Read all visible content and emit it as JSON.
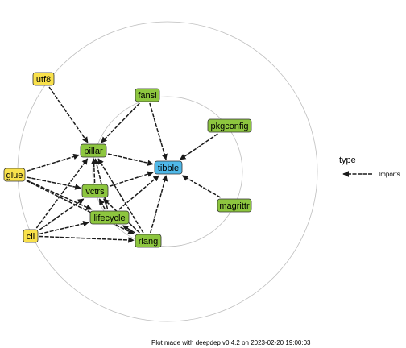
{
  "legend": {
    "title": "type",
    "items": [
      {
        "label": "Imports"
      }
    ]
  },
  "caption": "Plot made with deepdep v0.4.2 on 2023-02-20 19:00:03",
  "colors": {
    "level1": "#f9e14b",
    "level2": "#8dc63f",
    "root": "#4fb8e8",
    "edge": "#1a1a1a",
    "ring": "#bdbdbd"
  },
  "nodes": [
    {
      "id": "tibble",
      "label": "tibble",
      "level": "root"
    },
    {
      "id": "fansi",
      "label": "fansi",
      "level": "level2"
    },
    {
      "id": "pkgconfig",
      "label": "pkgconfig",
      "level": "level2"
    },
    {
      "id": "pillar",
      "label": "pillar",
      "level": "level2"
    },
    {
      "id": "vctrs",
      "label": "vctrs",
      "level": "level2"
    },
    {
      "id": "lifecycle",
      "label": "lifecycle",
      "level": "level2"
    },
    {
      "id": "rlang",
      "label": "rlang",
      "level": "level2"
    },
    {
      "id": "magrittr",
      "label": "magrittr",
      "level": "level2"
    },
    {
      "id": "utf8",
      "label": "utf8",
      "level": "level1"
    },
    {
      "id": "glue",
      "label": "glue",
      "level": "level1"
    },
    {
      "id": "cli",
      "label": "cli",
      "level": "level1"
    }
  ],
  "edges": [
    {
      "from": "fansi",
      "to": "tibble"
    },
    {
      "from": "pkgconfig",
      "to": "tibble"
    },
    {
      "from": "magrittr",
      "to": "tibble"
    },
    {
      "from": "pillar",
      "to": "tibble"
    },
    {
      "from": "vctrs",
      "to": "tibble"
    },
    {
      "from": "lifecycle",
      "to": "tibble"
    },
    {
      "from": "rlang",
      "to": "tibble"
    },
    {
      "from": "utf8",
      "to": "pillar"
    },
    {
      "from": "fansi",
      "to": "pillar"
    },
    {
      "from": "glue",
      "to": "pillar"
    },
    {
      "from": "cli",
      "to": "pillar"
    },
    {
      "from": "vctrs",
      "to": "pillar"
    },
    {
      "from": "lifecycle",
      "to": "pillar"
    },
    {
      "from": "rlang",
      "to": "pillar"
    },
    {
      "from": "glue",
      "to": "vctrs"
    },
    {
      "from": "cli",
      "to": "vctrs"
    },
    {
      "from": "lifecycle",
      "to": "vctrs"
    },
    {
      "from": "rlang",
      "to": "vctrs"
    },
    {
      "from": "glue",
      "to": "lifecycle"
    },
    {
      "from": "cli",
      "to": "lifecycle"
    },
    {
      "from": "rlang",
      "to": "lifecycle"
    },
    {
      "from": "glue",
      "to": "rlang"
    },
    {
      "from": "cli",
      "to": "rlang"
    }
  ]
}
